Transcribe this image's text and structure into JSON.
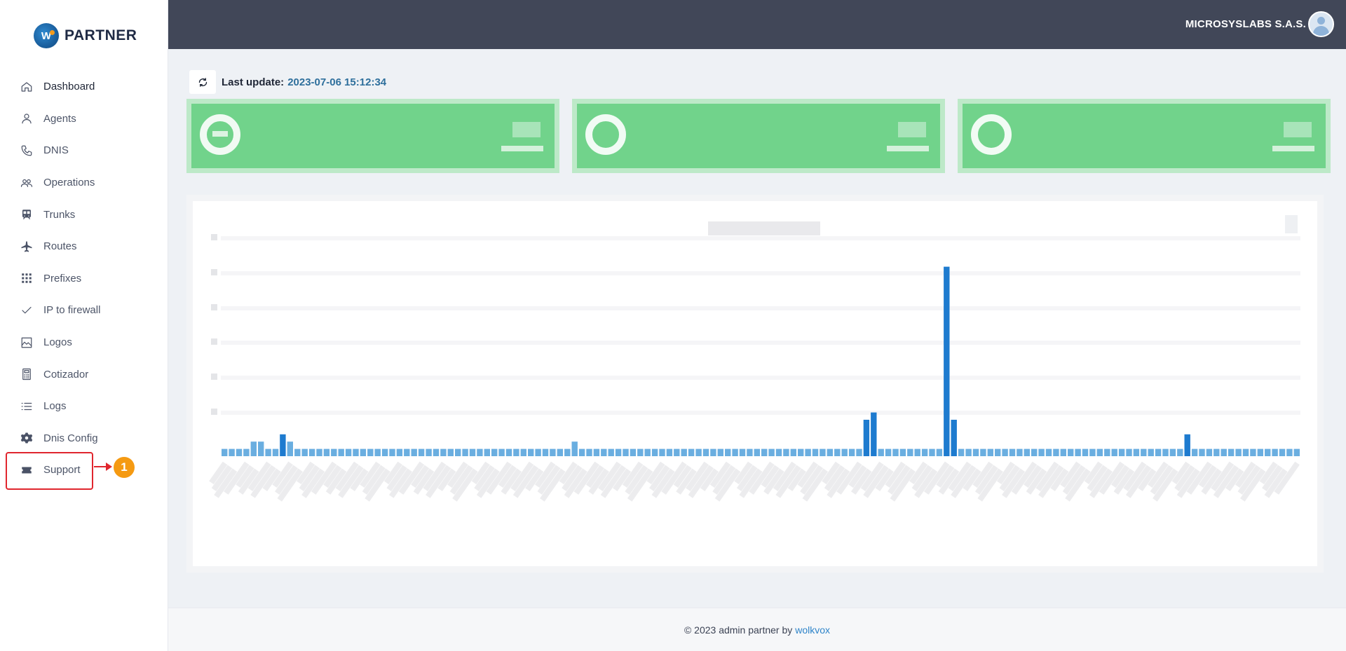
{
  "brand": {
    "name": "PARTNER",
    "logo_letter": "W"
  },
  "sidebar": {
    "items": [
      {
        "label": "Dashboard",
        "icon": "home-icon",
        "active": true
      },
      {
        "label": "Agents",
        "icon": "user-icon"
      },
      {
        "label": "DNIS",
        "icon": "phone-icon"
      },
      {
        "label": "Operations",
        "icon": "users-icon"
      },
      {
        "label": "Trunks",
        "icon": "train-icon"
      },
      {
        "label": "Routes",
        "icon": "plane-icon"
      },
      {
        "label": "Prefixes",
        "icon": "grid-icon"
      },
      {
        "label": "IP to firewall",
        "icon": "check-icon"
      },
      {
        "label": "Logos",
        "icon": "image-icon"
      },
      {
        "label": "Cotizador",
        "icon": "calculator-icon"
      },
      {
        "label": "Logs",
        "icon": "list-icon"
      },
      {
        "label": "Dnis Config",
        "icon": "gear-icon"
      },
      {
        "label": "Support",
        "icon": "ticket-icon"
      }
    ]
  },
  "annotation": {
    "badge": "1",
    "highlight_color": "#e0262e",
    "badge_color": "#f59a12"
  },
  "topbar": {
    "company": "MICROSYSLABS S.A.S."
  },
  "update": {
    "label": "Last update:",
    "value": "2023-07-06 15:12:34"
  },
  "colors": {
    "card_green": "#71d38b",
    "bar_blue": "#1e7bcf",
    "topbar": "#414758"
  },
  "chart_data": {
    "type": "bar",
    "series": [
      {
        "values": [
          1,
          1,
          1,
          1,
          2,
          2,
          1,
          1,
          3,
          2,
          1,
          1,
          1,
          1,
          1,
          1,
          1,
          1,
          1,
          1,
          1,
          1,
          1,
          1,
          1,
          1,
          1,
          1,
          1,
          1,
          1,
          1,
          1,
          1,
          1,
          1,
          1,
          1,
          1,
          1,
          1,
          1,
          1,
          1,
          1,
          1,
          1,
          1,
          2,
          1,
          1,
          1,
          1,
          1,
          1,
          1,
          1,
          1,
          1,
          1,
          1,
          1,
          1,
          1,
          1,
          1,
          1,
          1,
          1,
          1,
          1,
          1,
          1,
          1,
          1,
          1,
          1,
          1,
          1,
          1,
          1,
          1,
          1,
          1,
          1,
          1,
          1,
          1,
          5,
          6,
          1,
          1,
          1,
          1,
          1,
          1,
          1,
          1,
          1,
          26,
          5,
          1,
          1,
          1,
          1,
          1,
          1,
          1,
          1,
          1,
          1,
          1,
          1,
          1,
          1,
          1,
          1,
          1,
          1,
          1,
          1,
          1,
          1,
          1,
          1,
          1,
          1,
          1,
          1,
          1,
          1,
          1,
          3,
          1,
          1,
          1,
          1,
          1,
          1,
          1,
          1,
          1,
          1,
          1,
          1,
          1,
          1,
          1
        ]
      }
    ]
  },
  "footer": {
    "text": "© 2023 admin partner by",
    "link": "wolkvox"
  }
}
